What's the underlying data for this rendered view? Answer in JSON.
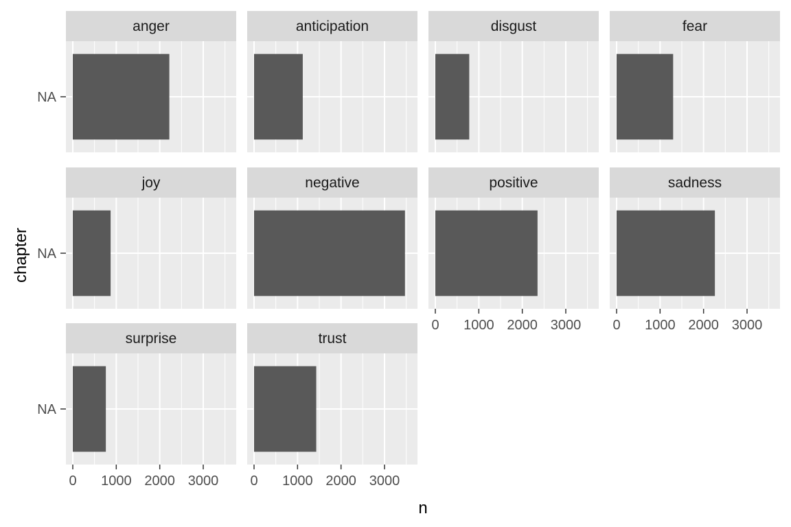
{
  "chart_data": {
    "type": "bar",
    "orientation": "horizontal",
    "facet_layout": {
      "columns": 4,
      "rows": 3,
      "scales": "fixed"
    },
    "xlabel": "n",
    "ylabel": "chapter",
    "category": "NA",
    "xlim": [
      0,
      3600
    ],
    "x_ticks": [
      0,
      1000,
      2000,
      3000
    ],
    "grid": true,
    "colors": {
      "bar": "#595959",
      "panel": "#ebebeb",
      "strip": "#d9d9d9",
      "grid": "#ffffff"
    },
    "panels": [
      {
        "label": "anger",
        "value": 2220
      },
      {
        "label": "anticipation",
        "value": 1120
      },
      {
        "label": "disgust",
        "value": 780
      },
      {
        "label": "fear",
        "value": 1300
      },
      {
        "label": "joy",
        "value": 870
      },
      {
        "label": "negative",
        "value": 3470
      },
      {
        "label": "positive",
        "value": 2350
      },
      {
        "label": "sadness",
        "value": 2260
      },
      {
        "label": "surprise",
        "value": 760
      },
      {
        "label": "trust",
        "value": 1430
      }
    ]
  }
}
